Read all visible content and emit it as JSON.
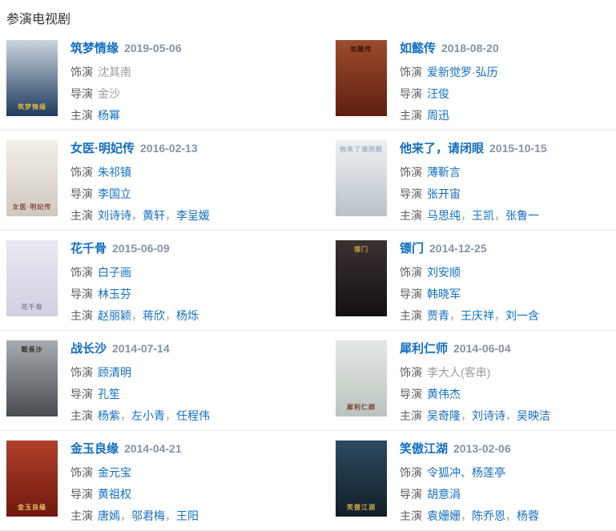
{
  "section": {
    "title": "参演电视剧"
  },
  "labels": {
    "role": "饰演",
    "director": "导演",
    "starring": "主演"
  },
  "colors": {
    "link": "#136ec2",
    "date": "#8694a8",
    "label": "#5f5f5f",
    "muted": "#9c9c9c",
    "divider": "#e8e8e8",
    "heading": "#333333"
  },
  "entries": [
    {
      "title": "筑梦情缘",
      "date": "2019-05-06",
      "role": "沈其南",
      "role_link": false,
      "director": "金沙",
      "director_link": false,
      "starring": [
        "杨幂"
      ],
      "poster": {
        "from": "#ccd5dd",
        "to": "#1d3a5e",
        "caption": "筑梦情缘",
        "caption_color": "#d8b14a",
        "caption_pos": "bottom"
      }
    },
    {
      "title": "如懿传",
      "date": "2018-08-20",
      "role": "爱新觉罗·弘历",
      "role_link": true,
      "director": "汪俊",
      "director_link": true,
      "starring": [
        "周迅"
      ],
      "poster": {
        "from": "#9c4c2c",
        "to": "#601f10",
        "caption": "如懿传",
        "caption_color": "#3b1208",
        "caption_pos": "top"
      }
    },
    {
      "title": "女医·明妃传",
      "date": "2016-02-13",
      "role": "朱祁镇",
      "role_link": true,
      "director": "李国立",
      "director_link": true,
      "starring": [
        "刘诗诗",
        "黄轩",
        "李呈媛"
      ],
      "poster": {
        "from": "#f2efe9",
        "to": "#cfc9bf",
        "caption": "女医·明妃传",
        "caption_color": "#8a4a52",
        "caption_pos": "bottom"
      }
    },
    {
      "title": "他来了，请闭眼",
      "date": "2015-10-15",
      "role": "薄靳言",
      "role_link": true,
      "director": "张开宙",
      "director_link": true,
      "starring": [
        "马思纯",
        "王凯",
        "张鲁一"
      ],
      "poster": {
        "from": "#eef1f3",
        "to": "#b9c2c9",
        "caption": "他来了请闭眼",
        "caption_color": "#9fb3c4",
        "caption_pos": "top"
      }
    },
    {
      "title": "花千骨",
      "date": "2015-06-09",
      "role": "白子画",
      "role_link": true,
      "director": "林玉芬",
      "director_link": true,
      "starring": [
        "赵丽颖",
        "蒋欣",
        "杨烁"
      ],
      "poster": {
        "from": "#e9e7f0",
        "to": "#d3cfe2",
        "caption": "花千骨",
        "caption_color": "#8c8798",
        "caption_pos": "bottom"
      }
    },
    {
      "title": "镖门",
      "date": "2014-12-25",
      "role": "刘安顺",
      "role_link": true,
      "director": "韩晓军",
      "director_link": true,
      "starring": [
        "贾青",
        "王庆祥",
        "刘一含"
      ],
      "poster": {
        "from": "#3a3231",
        "to": "#151011",
        "caption": "镖门",
        "caption_color": "#c79a3b",
        "caption_pos": "top"
      }
    },
    {
      "title": "战长沙",
      "date": "2014-07-14",
      "role": "顾清明",
      "role_link": true,
      "director": "孔笙",
      "director_link": true,
      "starring": [
        "杨紫",
        "左小青",
        "任程伟"
      ],
      "poster": {
        "from": "#a8adb2",
        "to": "#474b4f",
        "caption": "戰長沙",
        "caption_color": "#2f3338",
        "caption_pos": "top"
      }
    },
    {
      "title": "犀利仁师",
      "date": "2014-06-04",
      "role": "李大人(客串)",
      "role_link": false,
      "director": "黄伟杰",
      "director_link": true,
      "starring": [
        "吴奇隆",
        "刘诗诗",
        "吴映洁"
      ],
      "poster": {
        "from": "#e3e8e4",
        "to": "#bac4bd",
        "caption": "犀利仁師",
        "caption_color": "#7a3c30",
        "caption_pos": "bottom"
      }
    },
    {
      "title": "金玉良缘",
      "date": "2014-04-21",
      "role": "金元宝",
      "role_link": true,
      "director": "黄祖权",
      "director_link": true,
      "starring": [
        "唐嫣",
        "邬君梅",
        "王阳"
      ],
      "poster": {
        "from": "#b0402a",
        "to": "#70180e",
        "caption": "金玉良缘",
        "caption_color": "#e4c05c",
        "caption_pos": "bottom"
      }
    },
    {
      "title": "笑傲江湖",
      "date": "2013-02-06",
      "role": "令狐冲、杨莲亭",
      "role_link": true,
      "director": "胡意涓",
      "director_link": true,
      "starring": [
        "袁姗姗",
        "陈乔恩",
        "杨蓉"
      ],
      "poster": {
        "from": "#2c4b60",
        "to": "#121e28",
        "caption": "笑傲江湖",
        "caption_color": "#d2a94e",
        "caption_pos": "bottom"
      }
    }
  ]
}
